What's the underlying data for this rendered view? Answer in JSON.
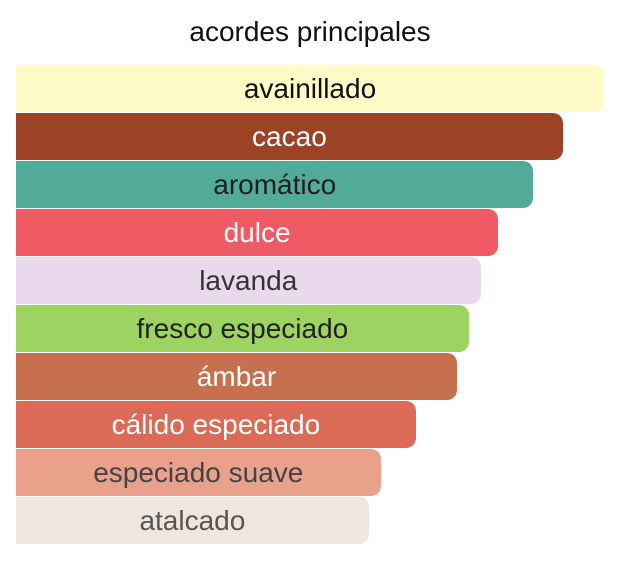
{
  "chart_data": {
    "type": "bar",
    "title": "acordes principales",
    "orientation": "horizontal",
    "categories": [
      "avainillado",
      "cacao",
      "aromático",
      "dulce",
      "lavanda",
      "fresco especiado",
      "ámbar",
      "cálido especiado",
      "especiado suave",
      "atalcado"
    ],
    "values": [
      100,
      93,
      88,
      82,
      79,
      77,
      75,
      68,
      62,
      60
    ],
    "colors": [
      "#fffbc7",
      "#9b4324",
      "#51ab98",
      "#f05a64",
      "#ead8ed",
      "#9dd361",
      "#c7704e",
      "#db6b56",
      "#e9a18c",
      "#f0e6dd"
    ],
    "text_colors": [
      "#111111",
      "#ffffff",
      "#1f1f1f",
      "#ffffff",
      "#333333",
      "#222222",
      "#ffffff",
      "#ffffff",
      "#444444",
      "#555555"
    ],
    "xlim": [
      0,
      100
    ],
    "grid": false,
    "legend": "none"
  }
}
